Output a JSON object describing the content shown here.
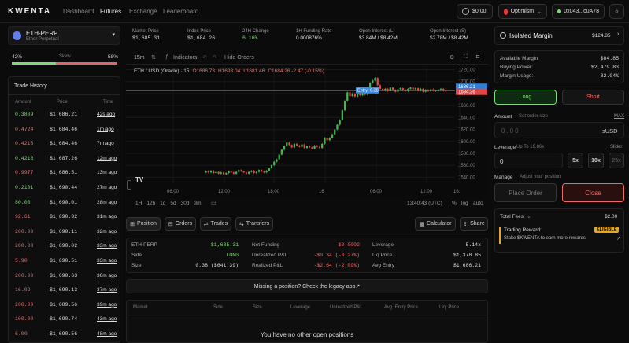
{
  "nav": {
    "logo": "KWENTA",
    "items": [
      "Dashboard",
      "Futures",
      "Exchange",
      "Leaderboard"
    ]
  },
  "wallet": {
    "balance": "$0.00",
    "network": "Optimism",
    "address": "0x043...c0A78"
  },
  "market": {
    "name": "ETH-PERP",
    "subtitle": "Ether Perpetual"
  },
  "stats": [
    {
      "label": "Market Price",
      "value": "$1,685.31"
    },
    {
      "label": "Index Price",
      "value": "$1,684.26"
    },
    {
      "label": "24H Change",
      "value": "6.16%"
    },
    {
      "label": "1H Funding Rate",
      "value": "0.000876%"
    },
    {
      "label": "Open Interest (L)",
      "value": "$3.84M / $8.42M"
    },
    {
      "label": "Open Interest (S)",
      "value": "$2.78M / $8.42M"
    }
  ],
  "skew": {
    "left": "42%",
    "label": "Skew",
    "right": "58%",
    "long_fraction": 0.42
  },
  "trade_history": {
    "title": "Trade History",
    "headers": [
      "Amount",
      "Price",
      "Time"
    ],
    "rows": [
      {
        "a": "0.3809",
        "p": "$1,686.21",
        "t": "42s ago",
        "c": "green"
      },
      {
        "a": "0.4724",
        "p": "$1,684.46",
        "t": "1m ago",
        "c": "red"
      },
      {
        "a": "0.4218",
        "p": "$1,684.46",
        "t": "7m ago",
        "c": "red"
      },
      {
        "a": "0.4218",
        "p": "$1,687.26",
        "t": "12m ago",
        "c": "green"
      },
      {
        "a": "0.9977",
        "p": "$1,686.51",
        "t": "13m ago",
        "c": "red"
      },
      {
        "a": "0.2101",
        "p": "$1,690.44",
        "t": "27m ago",
        "c": "green"
      },
      {
        "a": "80.00",
        "p": "$1,690.01",
        "t": "28m ago",
        "c": "green"
      },
      {
        "a": "92.61",
        "p": "$1,690.32",
        "t": "31m ago",
        "c": "red"
      },
      {
        "a": "200.00",
        "p": "$1,690.11",
        "t": "32m ago",
        "c": "red"
      },
      {
        "a": "200.00",
        "p": "$1,690.02",
        "t": "33m ago",
        "c": "red"
      },
      {
        "a": "5.90",
        "p": "$1,690.51",
        "t": "33m ago",
        "c": "red"
      },
      {
        "a": "200.00",
        "p": "$1,690.63",
        "t": "36m ago",
        "c": "red"
      },
      {
        "a": "16.02",
        "p": "$1,690.13",
        "t": "37m ago",
        "c": "red"
      },
      {
        "a": "200.00",
        "p": "$1,689.56",
        "t": "39m ago",
        "c": "red"
      },
      {
        "a": "100.00",
        "p": "$1,690.74",
        "t": "43m ago",
        "c": "red"
      },
      {
        "a": "6.00",
        "p": "$1,690.56",
        "t": "48m ago",
        "c": "red"
      }
    ]
  },
  "chart_toolbar": {
    "interval": "15m",
    "indicators": "Indicators",
    "hide": "Hide Orders"
  },
  "chart_legend": {
    "symbol": "ETH / USD (Oracle) · 15",
    "o": "O1686.73",
    "h": "H1693.04",
    "l": "L1681.46",
    "c": "C1684.26 -2.47 (-0.15%)"
  },
  "chart_data": {
    "type": "candlestick",
    "ylim": [
      1530,
      1722
    ],
    "yticks": [
      "1720.00",
      "1700.00",
      "1680.00",
      "1660.00",
      "1640.00",
      "1620.00",
      "1600.00",
      "1580.00",
      "1560.00",
      "1540.00"
    ],
    "xticks": [
      "06:00",
      "12:00",
      "18:00",
      "16",
      "06:00",
      "12:00",
      "16:"
    ],
    "price_label": "1686.21",
    "entry_price": "1684.26",
    "entry_label": "Entry",
    "entry_size": "0.38",
    "candles": [
      1550,
      1548,
      1551,
      1547,
      1549,
      1546,
      1548,
      1545,
      1547,
      1550,
      1548,
      1546,
      1549,
      1552,
      1550,
      1548,
      1546,
      1549,
      1551,
      1547,
      1549,
      1552,
      1550,
      1548,
      1551,
      1555,
      1560,
      1566,
      1570,
      1578,
      1586,
      1592,
      1598,
      1594,
      1590,
      1596,
      1593,
      1591,
      1595,
      1589,
      1592,
      1590,
      1588,
      1593,
      1591,
      1589,
      1596,
      1606,
      1602,
      1606,
      1612,
      1620,
      1628,
      1636,
      1652,
      1668,
      1682,
      1676,
      1680,
      1675,
      1679,
      1677,
      1680,
      1678,
      1690,
      1698,
      1702,
      1706,
      1694,
      1688,
      1685,
      1688,
      1684,
      1690,
      1686,
      1683,
      1687,
      1689,
      1686,
      1684,
      1688,
      1690,
      1687,
      1689,
      1685,
      1688,
      1683,
      1686,
      1684,
      1687,
      1685,
      1684,
      1686,
      1688,
      1685,
      1684
    ]
  },
  "chart_footer": {
    "ranges": [
      "1H",
      "12h",
      "1d",
      "5d",
      "30d",
      "3m"
    ],
    "time": "13:40:43 (UTC)",
    "pct": "%",
    "log": "log",
    "auto": "auto"
  },
  "tabs": {
    "position": "Position",
    "orders": "Orders",
    "trades": "Trades",
    "transfers": "Transfers",
    "calculator": "Calculator",
    "share": "Share"
  },
  "position": {
    "col1": [
      {
        "k": "ETH-PERP",
        "v": "$1,685.31"
      },
      {
        "k": "Side",
        "v": "LONG"
      },
      {
        "k": "Size",
        "v": "0.38 ($641.39)"
      }
    ],
    "col2": [
      {
        "k": "Net Funding",
        "v": "-$0.0002"
      },
      {
        "k": "Unrealized P&L",
        "v": "-$0.34 (-0.27%)"
      },
      {
        "k": "Realized P&L",
        "v": "-$2.64 (-2.09%)"
      }
    ],
    "col3": [
      {
        "k": "Leverage",
        "v": "5.14x"
      },
      {
        "k": "Liq Price",
        "v": "$1,378.85"
      },
      {
        "k": "Avg Entry",
        "v": "$1,686.21"
      }
    ]
  },
  "legacy": "Missing a position? Check the legacy app↗",
  "open_positions": {
    "headers": [
      "Market",
      "Side",
      "Size",
      "Leverage",
      "Unrealized P&L",
      "Avg. Entry Price",
      "Liq. Price"
    ],
    "empty": "You have no other open positions"
  },
  "margin": {
    "title": "Isolated Margin",
    "value": "$124.85",
    "rows": [
      {
        "k": "Available Margin:",
        "v": "$84.85"
      },
      {
        "k": "Buying Power:",
        "v": "$2,479.83"
      },
      {
        "k": "Margin Usage:",
        "v": "32.04%"
      }
    ],
    "long": "Long",
    "short": "Short"
  },
  "order": {
    "amount_label": "Amount",
    "amount_hint": "Set order size",
    "max": "MAX",
    "amount_placeholder": "0.00",
    "unit": "sUSD",
    "lev_label": "Leverage",
    "lev_hint": "Up To 19.86x",
    "slider": "Slider",
    "lev_value": "0",
    "lev_opts": [
      "5x",
      "10x",
      "25x"
    ],
    "manage_label": "Manage",
    "manage_hint": "Adjust your position",
    "place": "Place Order",
    "close": "Close"
  },
  "fees": {
    "label": "Total Fees:",
    "value": "$2.00"
  },
  "reward": {
    "title": "Trading Reward:",
    "badge": "ELIGIBLE",
    "text": "Stake $KWENTA to earn more rewards"
  }
}
